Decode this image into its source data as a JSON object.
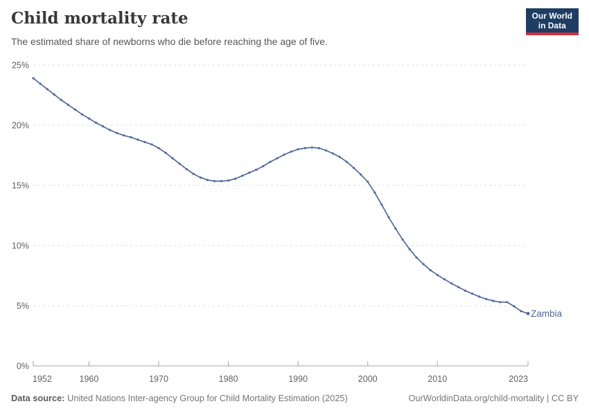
{
  "header": {
    "title": "Child mortality rate",
    "subtitle": "The estimated share of newborns who die before reaching the age of five.",
    "logo_line1": "Our World",
    "logo_line2": "in Data"
  },
  "footer": {
    "datasource_label": "Data source:",
    "datasource_text": " United Nations Inter-agency Group for Child Mortality Estimation (2025)",
    "link_text": "OurWorldinData.org/child-mortality | CC BY"
  },
  "colors": {
    "series_blue": "#4C6A9C",
    "grid": "#dcdcdc",
    "axis": "#a3a3a3",
    "tick_label": "#606060",
    "logo_bg": "#1d3d63",
    "logo_accent": "#d0333f"
  },
  "chart_data": {
    "type": "line",
    "title": "Child mortality rate",
    "subtitle": "The estimated share of newborns who die before reaching the age of five.",
    "xlabel": "",
    "ylabel": "",
    "xlim": [
      1952,
      2023
    ],
    "ylim": [
      0,
      25
    ],
    "grid": "horizontal dashed",
    "legend_position": "end-of-line label",
    "x_ticks": [
      1952,
      1960,
      1970,
      1980,
      1990,
      2000,
      2010,
      2023
    ],
    "x_tick_labels": [
      "1952",
      "1960",
      "1970",
      "1980",
      "1990",
      "2000",
      "2010",
      "2023"
    ],
    "y_ticks": [
      0,
      5,
      10,
      15,
      20,
      25
    ],
    "y_tick_labels": [
      "0%",
      "5%",
      "10%",
      "15%",
      "20%",
      "25%"
    ],
    "series": [
      {
        "name": "Zambia",
        "color": "#4C6A9C",
        "x": [
          1952,
          1953,
          1954,
          1955,
          1956,
          1957,
          1958,
          1959,
          1960,
          1961,
          1962,
          1963,
          1964,
          1965,
          1966,
          1967,
          1968,
          1969,
          1970,
          1971,
          1972,
          1973,
          1974,
          1975,
          1976,
          1977,
          1978,
          1979,
          1980,
          1981,
          1982,
          1983,
          1984,
          1985,
          1986,
          1987,
          1988,
          1989,
          1990,
          1991,
          1992,
          1993,
          1994,
          1995,
          1996,
          1997,
          1998,
          1999,
          2000,
          2001,
          2002,
          2003,
          2004,
          2005,
          2006,
          2007,
          2008,
          2009,
          2010,
          2011,
          2012,
          2013,
          2014,
          2015,
          2016,
          2017,
          2018,
          2019,
          2020,
          2021,
          2022,
          2023
        ],
        "values": [
          23.9,
          23.45,
          23.0,
          22.55,
          22.1,
          21.7,
          21.3,
          20.9,
          20.55,
          20.2,
          19.9,
          19.6,
          19.35,
          19.15,
          19.0,
          18.8,
          18.6,
          18.4,
          18.1,
          17.7,
          17.25,
          16.8,
          16.35,
          15.95,
          15.65,
          15.45,
          15.35,
          15.35,
          15.4,
          15.55,
          15.8,
          16.05,
          16.3,
          16.6,
          16.95,
          17.25,
          17.55,
          17.8,
          18.0,
          18.1,
          18.15,
          18.1,
          17.9,
          17.65,
          17.35,
          16.95,
          16.45,
          15.9,
          15.3,
          14.4,
          13.4,
          12.35,
          11.4,
          10.5,
          9.7,
          9.0,
          8.45,
          7.95,
          7.55,
          7.2,
          6.85,
          6.55,
          6.25,
          6.0,
          5.75,
          5.55,
          5.4,
          5.3,
          5.3,
          4.95,
          4.55,
          4.35
        ]
      }
    ]
  }
}
